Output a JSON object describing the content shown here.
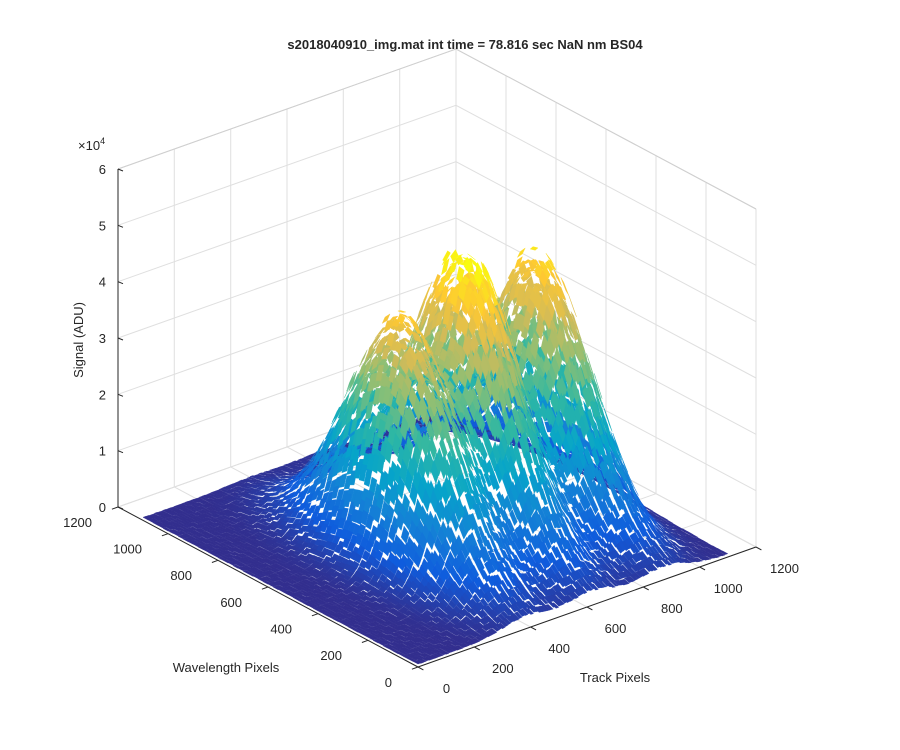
{
  "chart_data": {
    "type": "surface",
    "title": "s2018040910_img.mat int time = 78.816 sec  NaN nm BS04",
    "xlabel": "Track Pixels",
    "ylabel": "Wavelength Pixels",
    "zlabel": "Signal (ADU)",
    "z_exponent_label": "×10",
    "z_exponent_power": "4",
    "xlim": [
      0,
      1200
    ],
    "ylim": [
      0,
      1200
    ],
    "zlim": [
      0,
      6
    ],
    "z_multiplier": 10000,
    "x_ticks": [
      "0",
      "200",
      "400",
      "600",
      "800",
      "1000",
      "1200"
    ],
    "y_ticks": [
      "0",
      "200",
      "400",
      "600",
      "800",
      "1000",
      "1200"
    ],
    "z_ticks": [
      "0",
      "1",
      "2",
      "3",
      "4",
      "5",
      "6"
    ],
    "grid": true,
    "colormap": "parula",
    "colormap_stops": [
      "#352a87",
      "#0f5cdd",
      "#1481d6",
      "#06a4ca",
      "#2eb7a4",
      "#87bf77",
      "#d1bb59",
      "#fec832",
      "#f9fb0e"
    ],
    "surface_extent": {
      "x": [
        0,
        1100
      ],
      "y": [
        0,
        1100
      ]
    },
    "peaks": [
      {
        "track_center": 390,
        "track_width": 120,
        "wavelength_center": 500,
        "wavelength_width": 270,
        "peak_signal_x1e4": 4.0
      },
      {
        "track_center": 620,
        "track_width": 105,
        "wavelength_center": 500,
        "wavelength_width": 270,
        "peak_signal_x1e4": 4.7
      },
      {
        "track_center": 870,
        "track_width": 115,
        "wavelength_center": 500,
        "wavelength_width": 270,
        "peak_signal_x1e4": 4.3
      }
    ],
    "background_signal_x1e4": 0.05
  }
}
